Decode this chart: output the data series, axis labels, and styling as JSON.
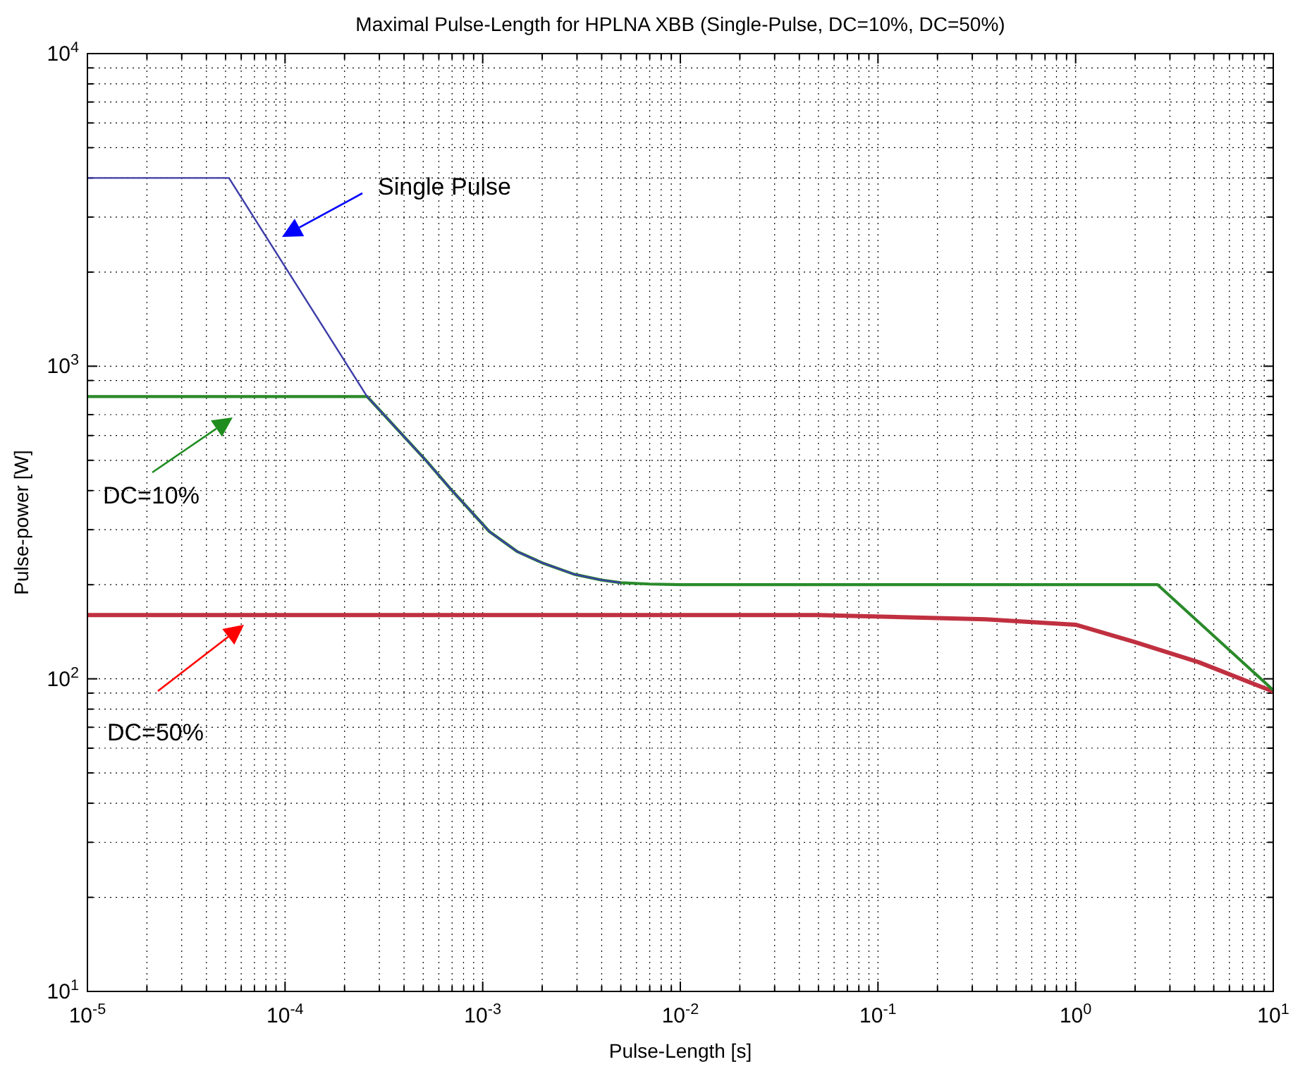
{
  "chart_data": {
    "type": "line",
    "title": "Maximal Pulse-Length for HPLNA XBB (Single-Pulse, DC=10%, DC=50%)",
    "xlabel": "Pulse-Length [s]",
    "ylabel": "Pulse-power [W]",
    "log": "xy",
    "grid": true,
    "line_style": "solid",
    "marker": "none",
    "xlim": [
      1e-05,
      10
    ],
    "ylim": [
      10,
      10000
    ],
    "xticks": [
      {
        "value": 1e-05,
        "label": "10$^{-5}$"
      },
      {
        "value": 0.0001,
        "label": "10$^{-4}$"
      },
      {
        "value": 0.001,
        "label": "10$^{-3}$"
      },
      {
        "value": 0.01,
        "label": "10$^{-2}$"
      },
      {
        "value": 0.1,
        "label": "10$^{-1}$"
      },
      {
        "value": 1,
        "label": "10$^{0}$"
      },
      {
        "value": 10,
        "label": "10$^{1}$"
      }
    ],
    "yticks": [
      {
        "value": 10,
        "label": "10$^{1}$"
      },
      {
        "value": 100,
        "label": "10$^{2}$"
      },
      {
        "value": 1000,
        "label": "10$^{3}$"
      },
      {
        "value": 10000,
        "label": "10$^{4}$"
      }
    ],
    "series": [
      {
        "color": "#c03040",
        "x": [
          1e-05,
          0.001,
          0.05,
          0.35,
          1,
          2,
          4.2,
          10
        ],
        "values": [
          160,
          160,
          160,
          155,
          149,
          131,
          113,
          91
        ]
      },
      {
        "color": "#2a8a2a",
        "x": [
          1e-05,
          0.00026,
          0.00052,
          0.0007,
          0.00108,
          0.0015,
          0.002,
          0.0029,
          0.004,
          0.005,
          0.007,
          0.01,
          2.6,
          10
        ],
        "values": [
          800,
          800,
          497,
          400,
          296,
          255,
          235,
          216,
          207,
          203,
          201,
          200,
          200,
          92
        ]
      },
      {
        "color": "#3c3ca8",
        "x": [
          1e-05,
          5.2e-05,
          0.00026,
          0.00052,
          0.0007,
          0.00108,
          0.0015,
          0.002,
          0.0029,
          0.004,
          0.005
        ],
        "values": [
          4000,
          4000,
          800,
          497,
          400,
          296,
          255,
          235,
          216,
          207,
          203
        ]
      }
    ],
    "annotations": [
      "Single Pulse",
      "DC=10%",
      "DC=50%"
    ]
  }
}
